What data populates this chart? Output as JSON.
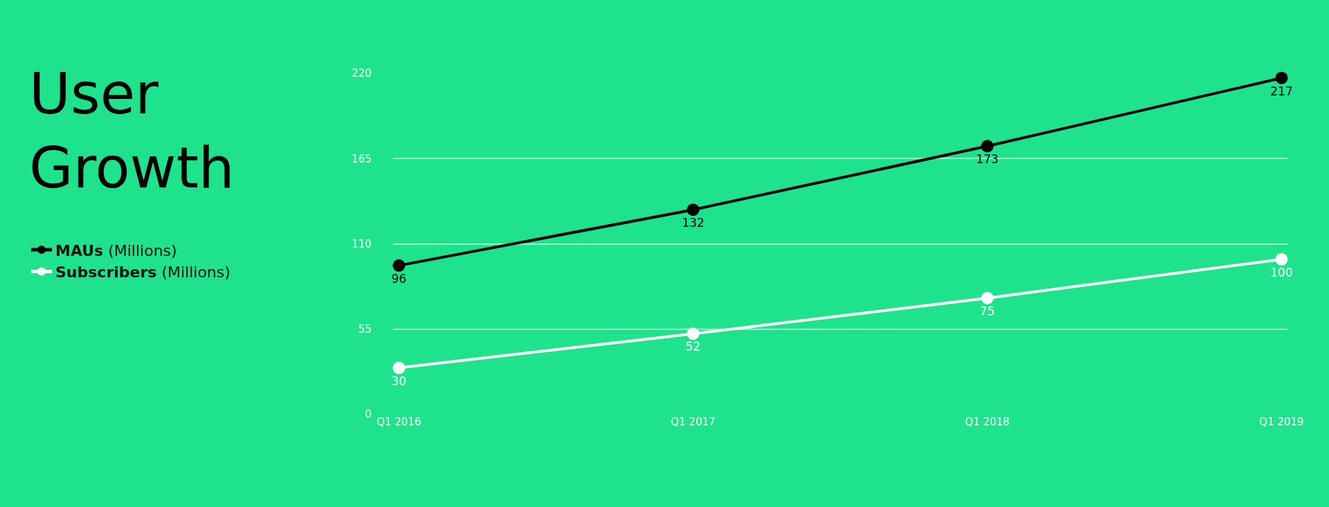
{
  "chart_data": {
    "type": "line",
    "title": "User Growth",
    "categories": [
      "Q1 2016",
      "Q1 2017",
      "Q1 2018",
      "Q1 2019"
    ],
    "series": [
      {
        "name": "MAUs (Millions)",
        "color": "#000000",
        "values": [
          96,
          132,
          173,
          217
        ]
      },
      {
        "name": "Subscribers (Millions)",
        "color": "#ffffff",
        "values": [
          30,
          52,
          75,
          100
        ]
      }
    ],
    "ylim": [
      0,
      220
    ],
    "yticks": [
      0,
      55,
      110,
      165,
      220
    ],
    "grid": "y",
    "legend": "left",
    "marker": "circle",
    "line_style": "solid",
    "data_labels": true
  }
}
